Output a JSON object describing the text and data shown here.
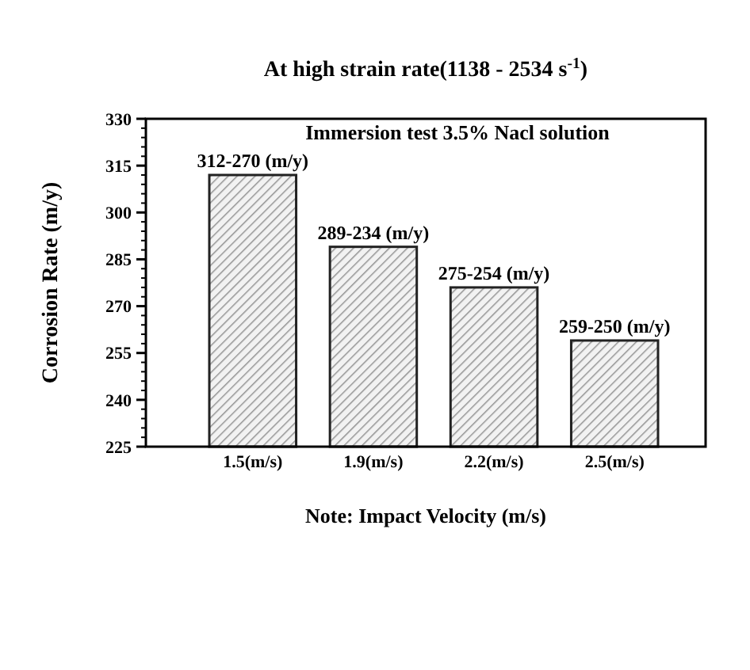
{
  "chart_data": {
    "type": "bar",
    "title": "At high strain rate(1138 - 2534 s$^{-1}$)",
    "xlabel": "Note: Impact Velocity (m/s)",
    "ylabel": "Corrosion Rate (m/y)",
    "annotations": [
      "Immersion test 3.5% Nacl solution"
    ],
    "categories": [
      "1.5(m/s)",
      "1.9(m/s)",
      "2.2(m/s)",
      "2.5(m/s)"
    ],
    "values": [
      312,
      289,
      276,
      259
    ],
    "value_labels": [
      "312-270 (m/y)",
      "289-234 (m/y)",
      "275-254 (m/y)",
      "259-250 (m/y)"
    ],
    "color": "#222222",
    "ylim": [
      225,
      330
    ],
    "yticks": [
      225,
      240,
      255,
      270,
      285,
      300,
      315,
      330
    ]
  }
}
